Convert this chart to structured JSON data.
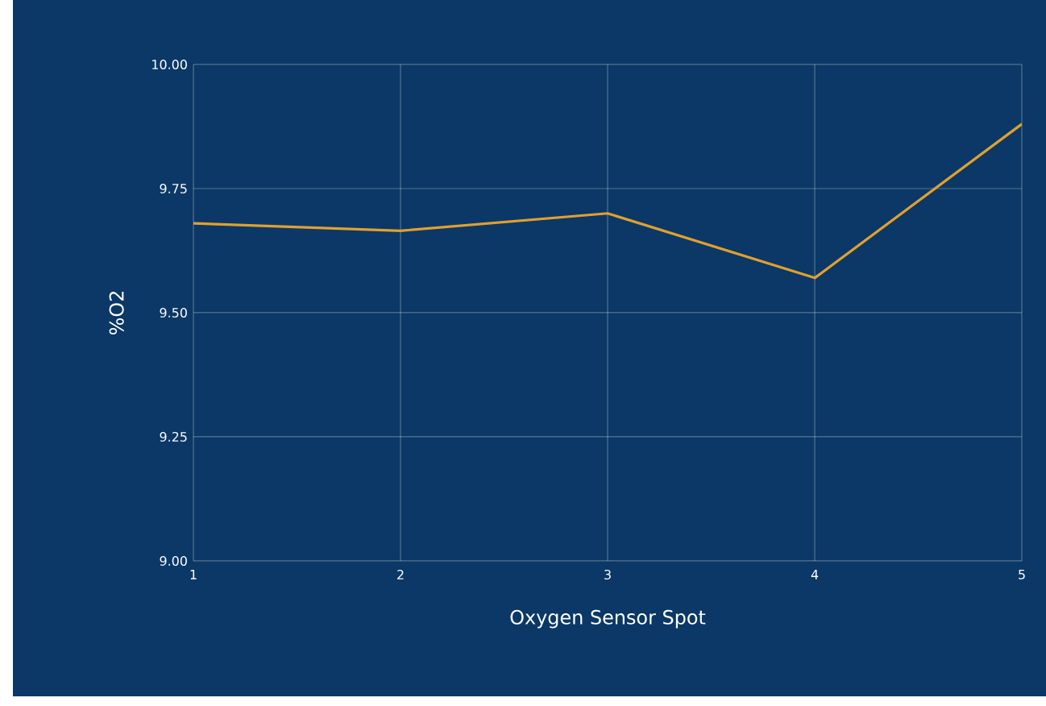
{
  "chart_data": {
    "type": "line",
    "xlabel": "Oxygen Sensor Spot",
    "ylabel": "%O2",
    "x": [
      1,
      2,
      3,
      4,
      5
    ],
    "series": [
      {
        "color": "#e0a030",
        "values": [
          9.68,
          9.665,
          9.7,
          9.57,
          9.88
        ]
      }
    ],
    "xlim": [
      1,
      5
    ],
    "xticks": [
      1,
      2,
      3,
      4,
      5
    ],
    "ylim": [
      9,
      10
    ],
    "yticks": [
      {
        "value": 9,
        "label": "9.00"
      },
      {
        "value": 9.25,
        "label": "9.25"
      },
      {
        "value": 9.5,
        "label": "9.50"
      },
      {
        "value": 9.75,
        "label": "9.75"
      },
      {
        "value": 10,
        "label": "10.00"
      }
    ],
    "grid": true,
    "marker": "none",
    "line_style": "solid"
  }
}
